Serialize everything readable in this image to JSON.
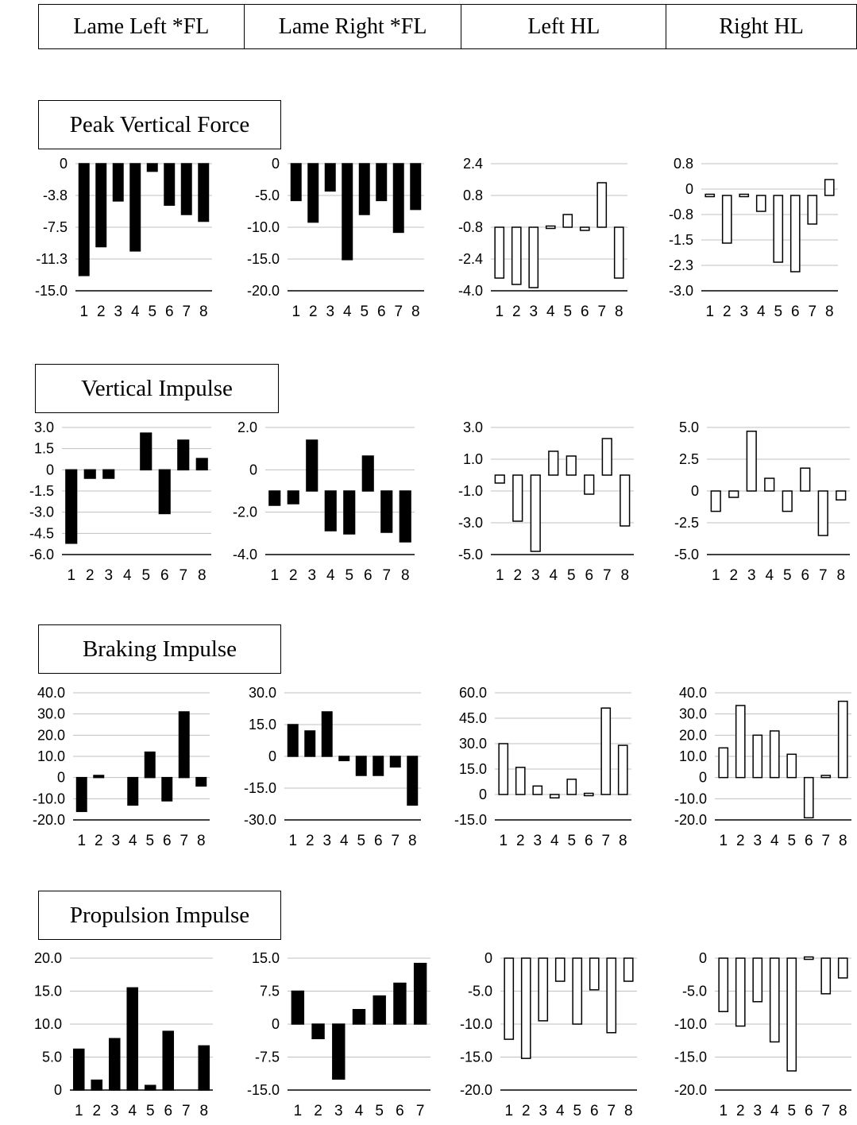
{
  "columns": [
    "Lame Left *FL",
    "Lame Right *FL",
    "Left HL",
    "Right HL"
  ],
  "sections": [
    "Peak Vertical Force",
    "Vertical Impulse",
    "Braking Impulse",
    "Propulsion Impulse"
  ],
  "colors": {
    "filled": "#000000",
    "hollow": "#ffffff",
    "grid": "#c0c0c0"
  },
  "chart_data": [
    {
      "type": "bar",
      "section": "Peak Vertical Force",
      "column": "Lame Left *FL",
      "style": "filled",
      "categories": [
        "1",
        "2",
        "3",
        "4",
        "5",
        "6",
        "7",
        "8"
      ],
      "ylim": [
        -15.0,
        0
      ],
      "yticks": [
        "0",
        "-3.8",
        "-7.5",
        "-11.3",
        "-15.0"
      ],
      "values": [
        -13.2,
        -9.8,
        -4.4,
        -10.3,
        -0.9,
        -4.9,
        -6.0,
        -6.8
      ]
    },
    {
      "type": "bar",
      "section": "Peak Vertical Force",
      "column": "Lame Right *FL",
      "style": "filled",
      "categories": [
        "1",
        "2",
        "3",
        "4",
        "5",
        "6",
        "7",
        "8"
      ],
      "ylim": [
        -20.0,
        0
      ],
      "yticks": [
        "0",
        "-5.0",
        "-10.0",
        "-15.0",
        "-20.0"
      ],
      "values": [
        -5.8,
        -9.2,
        -4.3,
        -15.1,
        -8.0,
        -5.8,
        -10.8,
        -7.2
      ]
    },
    {
      "type": "bar",
      "section": "Peak Vertical Force",
      "column": "Left HL",
      "style": "hollow",
      "categories": [
        "1",
        "2",
        "3",
        "4",
        "5",
        "6",
        "7",
        "8"
      ],
      "ylim": [
        -4.0,
        4.0
      ],
      "yticks": [
        "2.4",
        "0.8",
        "-0.8",
        "-2.4",
        "-4.0"
      ],
      "values": [
        -3.2,
        -3.6,
        -3.8,
        0.05,
        0.8,
        -0.2,
        2.8,
        -3.2
      ]
    },
    {
      "type": "bar",
      "section": "Peak Vertical Force",
      "column": "Right HL",
      "style": "hollow",
      "categories": [
        "1",
        "2",
        "3",
        "4",
        "5",
        "6",
        "7",
        "8"
      ],
      "ylim": [
        -3.0,
        1.0
      ],
      "yticks": [
        "0.8",
        "0",
        "-0.8",
        "-1.5",
        "-2.3",
        "-3.0"
      ],
      "values": [
        0.02,
        -1.5,
        0,
        -0.5,
        -2.1,
        -2.4,
        -0.9,
        0.5
      ]
    },
    {
      "type": "bar",
      "section": "Vertical Impulse",
      "column": "Lame Left *FL",
      "style": "filled",
      "categories": [
        "1",
        "2",
        "3",
        "4",
        "5",
        "6",
        "7",
        "8"
      ],
      "ylim": [
        -6.0,
        3.0
      ],
      "yticks": [
        "3.0",
        "1.5",
        "0",
        "-1.5",
        "-3.0",
        "-4.5",
        "-6.0"
      ],
      "values": [
        -5.2,
        -0.6,
        -0.6,
        0,
        2.6,
        -3.1,
        2.1,
        0.8
      ]
    },
    {
      "type": "bar",
      "section": "Vertical Impulse",
      "column": "Lame Right *FL",
      "style": "filled",
      "categories": [
        "1",
        "2",
        "3",
        "4",
        "5",
        "6",
        "7",
        "8"
      ],
      "ylim": [
        -4.0,
        4.0
      ],
      "yticks": [
        "2.0",
        "0",
        "-2.0",
        "-4.0"
      ],
      "values": [
        -0.9,
        -0.8,
        3.2,
        -2.5,
        -2.7,
        2.2,
        -2.6,
        -3.2
      ]
    },
    {
      "type": "bar",
      "section": "Vertical Impulse",
      "column": "Left HL",
      "style": "hollow",
      "categories": [
        "1",
        "2",
        "3",
        "4",
        "5",
        "6",
        "7",
        "8"
      ],
      "ylim": [
        -5.0,
        3.0
      ],
      "yticks": [
        "3.0",
        "1.0",
        "-1.0",
        "-3.0",
        "-5.0"
      ],
      "values": [
        -0.5,
        -2.9,
        -4.8,
        1.5,
        1.2,
        -1.2,
        2.3,
        -3.2
      ]
    },
    {
      "type": "bar",
      "section": "Vertical Impulse",
      "column": "Right HL",
      "style": "hollow",
      "categories": [
        "1",
        "2",
        "3",
        "4",
        "5",
        "6",
        "7",
        "8"
      ],
      "ylim": [
        -5.0,
        5.0
      ],
      "yticks": [
        "5.0",
        "2.5",
        "0",
        "-2.5",
        "-5.0"
      ],
      "values": [
        -1.6,
        -0.5,
        4.7,
        1.0,
        -1.6,
        1.8,
        -3.5,
        -0.7
      ]
    },
    {
      "type": "bar",
      "section": "Braking Impulse",
      "column": "Lame Left *FL",
      "style": "filled",
      "categories": [
        "1",
        "2",
        "3",
        "4",
        "5",
        "6",
        "7",
        "8"
      ],
      "ylim": [
        -20.0,
        40.0
      ],
      "yticks": [
        "40.0",
        "30.0",
        "20.0",
        "10.0",
        "0",
        "-10.0",
        "-20.0"
      ],
      "values": [
        -16,
        1,
        0,
        -13,
        12,
        -11,
        31,
        -4
      ]
    },
    {
      "type": "bar",
      "section": "Braking Impulse",
      "column": "Lame Right *FL",
      "style": "filled",
      "categories": [
        "1",
        "2",
        "3",
        "4",
        "5",
        "6",
        "7",
        "8"
      ],
      "ylim": [
        -30.0,
        30.0
      ],
      "yticks": [
        "30.0",
        "15.0",
        "0",
        "-15.0",
        "-30.0"
      ],
      "values": [
        15,
        12,
        21,
        -2,
        -9,
        -9,
        -5,
        -23
      ]
    },
    {
      "type": "bar",
      "section": "Braking Impulse",
      "column": "Left HL",
      "style": "hollow",
      "categories": [
        "1",
        "2",
        "3",
        "4",
        "5",
        "6",
        "7",
        "8"
      ],
      "ylim": [
        -15.0,
        60.0
      ],
      "yticks": [
        "60.0",
        "45.0",
        "30.0",
        "15.0",
        "0",
        "-15.0"
      ],
      "values": [
        30,
        16,
        5,
        -2,
        9,
        0,
        51,
        29
      ]
    },
    {
      "type": "bar",
      "section": "Braking Impulse",
      "column": "Right HL",
      "style": "hollow",
      "categories": [
        "1",
        "2",
        "3",
        "4",
        "5",
        "6",
        "7",
        "8"
      ],
      "ylim": [
        -20.0,
        40.0
      ],
      "yticks": [
        "40.0",
        "30.0",
        "20.0",
        "10.0",
        "0",
        "-10.0",
        "-20.0"
      ],
      "values": [
        14,
        34,
        20,
        22,
        11,
        -19,
        1,
        36
      ]
    },
    {
      "type": "bar",
      "section": "Propulsion Impulse",
      "column": "Lame Left *FL",
      "style": "filled",
      "categories": [
        "1",
        "2",
        "3",
        "4",
        "5",
        "6",
        "7",
        "8"
      ],
      "ylim": [
        0,
        20.0
      ],
      "yticks": [
        "20.0",
        "15.0",
        "10.0",
        "5.0",
        "0"
      ],
      "values": [
        6.2,
        1.5,
        7.8,
        15.5,
        0.7,
        8.9,
        0,
        6.7
      ]
    },
    {
      "type": "bar",
      "section": "Propulsion Impulse",
      "column": "Lame Right *FL",
      "style": "filled",
      "categories": [
        "1",
        "2",
        "3",
        "4",
        "5",
        "6",
        "7"
      ],
      "ylim": [
        -15.0,
        15.0
      ],
      "yticks": [
        "15.0",
        "7.5",
        "0",
        "-7.5",
        "-15.0"
      ],
      "values": [
        7.5,
        -3.3,
        -12.5,
        3.3,
        6.4,
        9.3,
        13.8
      ]
    },
    {
      "type": "bar",
      "section": "Propulsion Impulse",
      "column": "Left HL",
      "style": "hollow",
      "categories": [
        "1",
        "2",
        "3",
        "4",
        "5",
        "6",
        "7",
        "8"
      ],
      "ylim": [
        -20.0,
        0
      ],
      "yticks": [
        "0",
        "-5.0",
        "-10.0",
        "-15.0",
        "-20.0"
      ],
      "values": [
        -12.3,
        -15.2,
        -9.5,
        -3.5,
        -10.0,
        -4.8,
        -11.3,
        -3.5
      ]
    },
    {
      "type": "bar",
      "section": "Propulsion Impulse",
      "column": "Right HL",
      "style": "hollow",
      "categories": [
        "1",
        "2",
        "3",
        "4",
        "5",
        "6",
        "7",
        "8"
      ],
      "ylim": [
        -20.0,
        0
      ],
      "yticks": [
        "0",
        "-5.0",
        "-10.0",
        "-15.0",
        "-20.0"
      ],
      "values": [
        -8.1,
        -10.3,
        -6.6,
        -12.7,
        -17.1,
        0,
        -5.4,
        -3.0
      ]
    }
  ]
}
